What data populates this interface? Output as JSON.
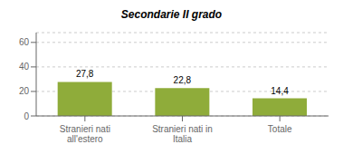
{
  "chart_data": {
    "type": "bar",
    "title": "Secondarie II grado",
    "categories": [
      "Stranieri nati\nall'estero",
      "Stranieri nati in\nItalia",
      "Totale"
    ],
    "values": [
      27.8,
      22.8,
      14.4
    ],
    "value_labels": [
      "27,8",
      "22,8",
      "14,4"
    ],
    "color": "#8fac3a",
    "ylim": [
      0,
      68
    ],
    "yticks": [
      0,
      20,
      40,
      60
    ],
    "grid": true
  }
}
